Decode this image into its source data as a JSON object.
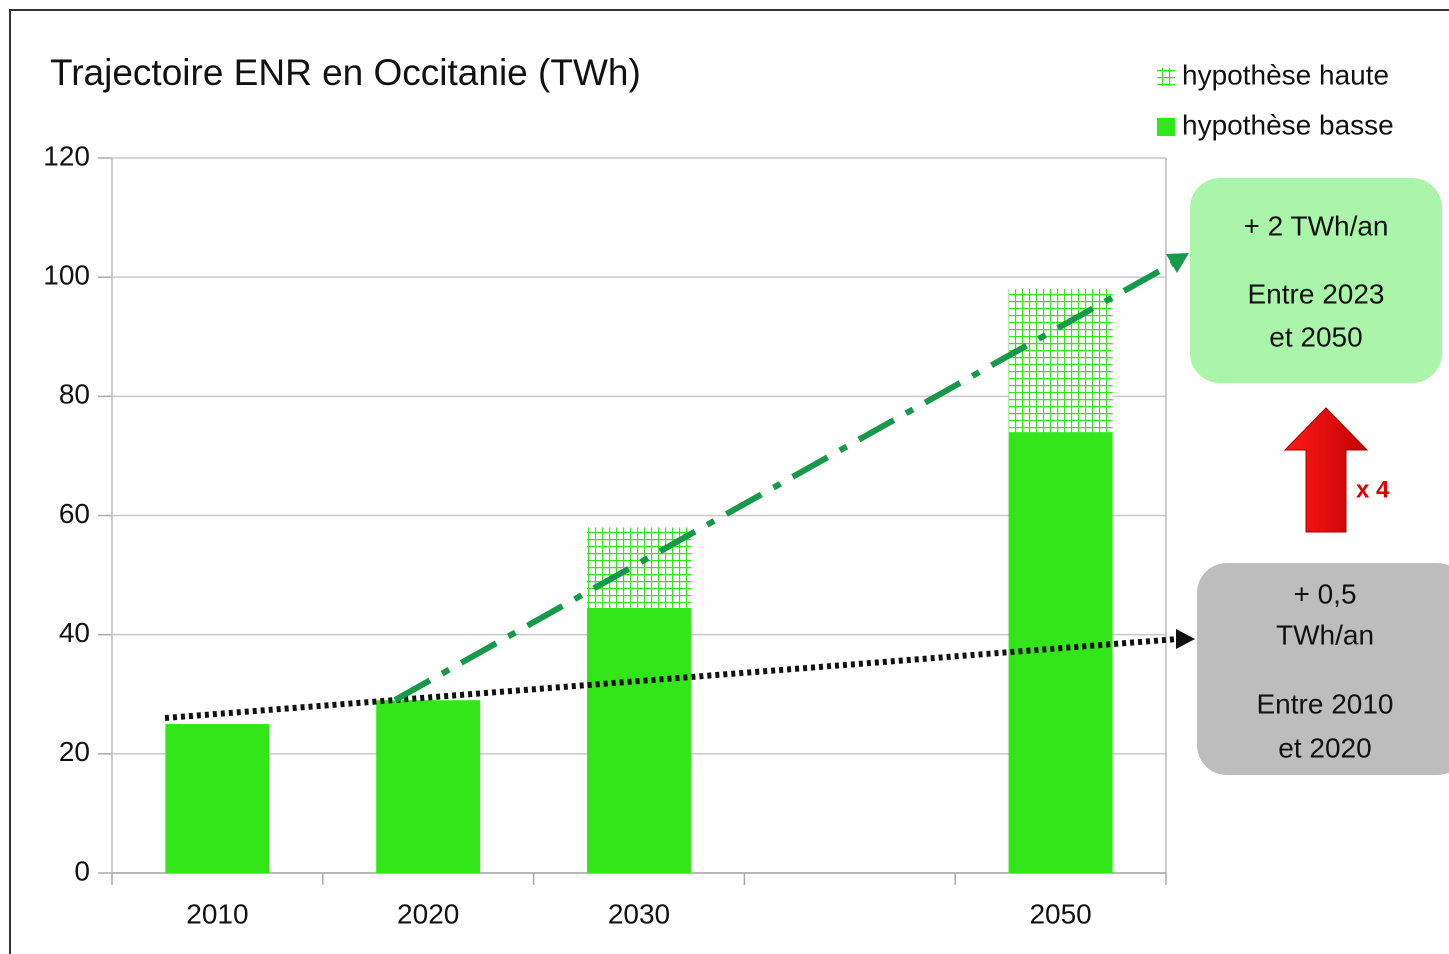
{
  "chart_data": {
    "type": "stacked_bar",
    "title": "Trajectoire ENR en Occitanie (TWh)",
    "categories": [
      "2010",
      "2020",
      "2030",
      null,
      "2050"
    ],
    "series": [
      {
        "name": "hypothèse basse",
        "color": "#33e619",
        "pattern": "solid",
        "values": [
          25,
          29,
          44.5,
          null,
          74
        ]
      },
      {
        "name": "hypothèse haute",
        "color": "#33e619",
        "pattern": "grid",
        "values": [
          null,
          null,
          13.5,
          null,
          24
        ]
      }
    ],
    "ylim": [
      0,
      120
    ],
    "yticks": [
      0,
      20,
      40,
      60,
      80,
      100,
      120
    ],
    "grid": true,
    "legend": "top-right",
    "annotations": {
      "high_rate": [
        "+ 2 TWh/an",
        "Entre 2023",
        "et 2050"
      ],
      "low_rate": [
        "+ 0,5",
        "TWh/an",
        "Entre 2010",
        "et 2020"
      ],
      "factor": "x 4"
    }
  }
}
